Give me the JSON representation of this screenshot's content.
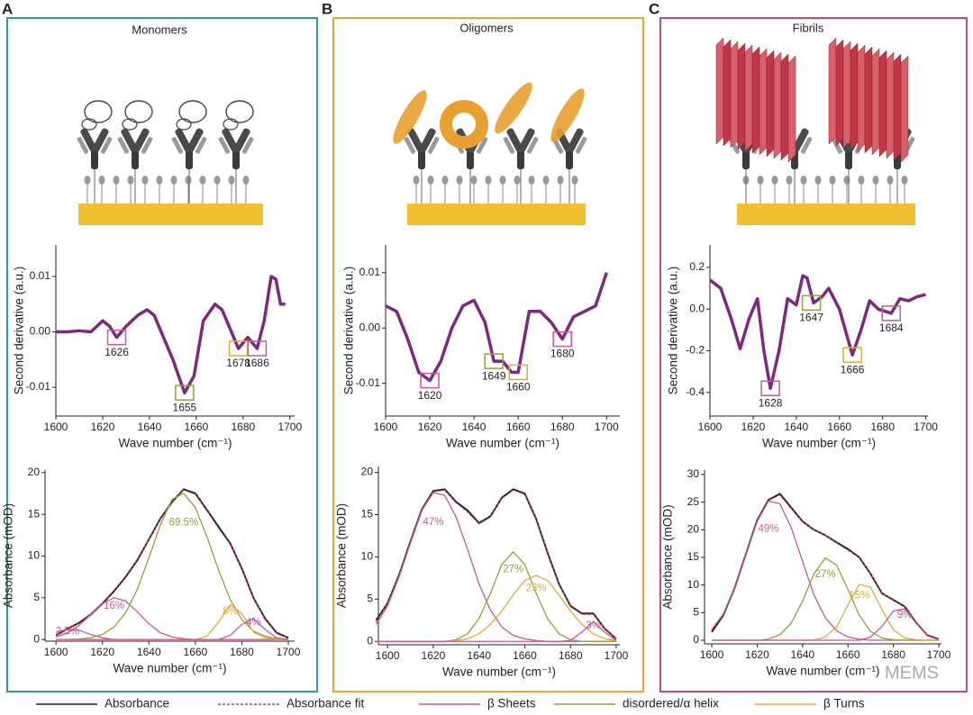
{
  "panels": [
    {
      "letter": "A",
      "title": "Monomers"
    },
    {
      "letter": "B",
      "title": "Oligomers"
    },
    {
      "letter": "C",
      "title": "Fibrils"
    }
  ],
  "legend": [
    {
      "name": "Absorbance",
      "color": "#222222",
      "style": "solid"
    },
    {
      "name": "Absorbance fit",
      "color": "#c0454f",
      "style": "dashed"
    },
    {
      "name": "β Sheets",
      "color": "#c45a96",
      "style": "solid"
    },
    {
      "name": "disordered/α helix",
      "color": "#8fa040",
      "style": "solid"
    },
    {
      "name": "β Turns",
      "color": "#e0a840",
      "style": "solid"
    }
  ],
  "watermark": "MEMS",
  "chart_data": [
    {
      "type": "line",
      "xlabel": "Wave number (cm⁻¹)",
      "ylabel": "Second derivative (a.u.)",
      "xlim": [
        1600,
        1702
      ],
      "ylim": [
        -0.0152,
        0.0157
      ],
      "xticks": [
        1600,
        1620,
        1640,
        1660,
        1680,
        1700
      ],
      "yticks": [
        {
          "value": -0.01,
          "label": "-0.01"
        },
        {
          "value": 0,
          "label": "0.00"
        },
        {
          "value": 0.01,
          "label": "0.01"
        }
      ],
      "x": [
        1600,
        1605,
        1610,
        1615,
        1620,
        1623,
        1626,
        1630,
        1635,
        1639,
        1642,
        1646,
        1650,
        1655,
        1659,
        1663,
        1668,
        1671,
        1675,
        1678,
        1682,
        1686,
        1689,
        1692,
        1694,
        1696,
        1698
      ],
      "series": [
        {
          "name": "Second derivative",
          "color": "#7b2a7e",
          "values": [
            0,
            0,
            0.0002,
            0,
            0.002,
            0.001,
            -0.001,
            0.001,
            0.003,
            0.004,
            0.003,
            -0.001,
            -0.005,
            -0.011,
            -0.008,
            0.002,
            0.005,
            0.004,
            0,
            -0.003,
            -0.001,
            -0.003,
            0.002,
            0.01,
            0.0095,
            0.005,
            0.005
          ]
        }
      ],
      "peaks": [
        1626,
        1655,
        1678,
        1686
      ],
      "peak_y": [
        -0.001,
        -0.011,
        -0.003,
        -0.003
      ],
      "peak_colors": [
        "#c45a96",
        "#8fa040",
        "#e0a840",
        "#c45a96"
      ]
    },
    {
      "type": "line",
      "xlabel": "Wave number (cm⁻¹)",
      "ylabel": "Absorbance (mOD)",
      "xlim": [
        1595.3,
        1702.7
      ],
      "ylim": [
        -0.2,
        20.3
      ],
      "xticks": [
        1600,
        1620,
        1640,
        1660,
        1680,
        1700
      ],
      "yticks": [
        0,
        5,
        10,
        15,
        20
      ],
      "x": [
        1600,
        1605,
        1610,
        1615,
        1620,
        1625,
        1630,
        1635,
        1640,
        1645,
        1650,
        1655,
        1660,
        1665,
        1670,
        1675,
        1680,
        1685,
        1690,
        1695,
        1700
      ],
      "series": [
        {
          "name": "Absorbance",
          "color": "#222222",
          "style": "solid",
          "values": [
            0.5,
            1.3,
            2.0,
            3.0,
            4.3,
            5.8,
            7.5,
            9.5,
            12,
            14.5,
            16.5,
            18,
            17.5,
            15.5,
            13.5,
            11.5,
            8.5,
            5,
            2.5,
            0.8,
            0.2
          ]
        },
        {
          "name": "Absorbance fit",
          "color": "#c0454f",
          "style": "dashed",
          "values": [
            0.6,
            1.3,
            2.1,
            3.1,
            4.4,
            5.9,
            7.6,
            9.6,
            12,
            14.4,
            16.6,
            17.9,
            17.4,
            15.4,
            13.3,
            11.4,
            8.4,
            5.1,
            2.4,
            0.7,
            0.2
          ]
        },
        {
          "name": "β Sheets",
          "color": "#c45a96",
          "style": "solid",
          "share": {
            "value": 2.5,
            "label": "2.5%"
          },
          "values": [
            0.9,
            1.2,
            1.1,
            0.6,
            0.2,
            0,
            0,
            0,
            0,
            0,
            0,
            0,
            0,
            0,
            0,
            0,
            0,
            0,
            0,
            0,
            0
          ]
        },
        {
          "name": "β Sheets",
          "color": "#c45a96",
          "style": "solid",
          "share": {
            "value": 16,
            "label": "16%"
          },
          "values": [
            0.3,
            0.8,
            1.7,
            3.0,
            4.3,
            5.0,
            4.6,
            3.3,
            1.9,
            0.8,
            0.3,
            0.1,
            0,
            0,
            0,
            0,
            0,
            0,
            0,
            0,
            0
          ]
        },
        {
          "name": "disordered/α helix",
          "color": "#8fa040",
          "style": "solid",
          "share": {
            "value": 69.5,
            "label": "69.5%"
          },
          "values": [
            0,
            0,
            0.06,
            0.2,
            0.6,
            1.5,
            3.2,
            6.0,
            9.8,
            13.8,
            16.8,
            17.5,
            15.8,
            12.3,
            8.3,
            4.8,
            2.4,
            1.0,
            0.4,
            0.1,
            0
          ]
        },
        {
          "name": "β Turns",
          "color": "#e0a840",
          "style": "solid",
          "share": {
            "value": 8,
            "label": "8%"
          },
          "values": [
            0,
            0,
            0,
            0,
            0,
            0,
            0,
            0,
            0,
            0,
            0,
            0,
            0,
            0.4,
            2.1,
            4.2,
            3.1,
            0.9,
            0.2,
            0,
            0
          ]
        },
        {
          "name": "β Sheets",
          "color": "#c45a96",
          "style": "solid",
          "share": {
            "value": 4,
            "label": "4%"
          },
          "values": [
            0,
            0,
            0,
            0,
            0,
            0,
            0,
            0,
            0,
            0,
            0,
            0,
            0,
            0,
            0,
            0.5,
            1.8,
            2.5,
            1.2,
            0.2,
            0
          ]
        }
      ]
    },
    {
      "type": "line",
      "xlabel": "Wave number (cm⁻¹)",
      "ylabel": "Second derivative (a.u.)",
      "xlim": [
        1600,
        1706
      ],
      "ylim": [
        -0.0159,
        0.015
      ],
      "xticks": [
        1600,
        1620,
        1640,
        1660,
        1680,
        1700
      ],
      "yticks": [
        {
          "value": -0.01,
          "label": "-0.01"
        },
        {
          "value": 0,
          "label": "0.00"
        },
        {
          "value": 0.01,
          "label": "0.01"
        }
      ],
      "x": [
        1600,
        1605,
        1610,
        1615,
        1620,
        1625,
        1630,
        1635,
        1640,
        1645,
        1649,
        1653,
        1657,
        1660,
        1665,
        1670,
        1675,
        1680,
        1685,
        1690,
        1695,
        1700
      ],
      "series": [
        {
          "name": "Second derivative",
          "color": "#7b2a7e",
          "values": [
            0.004,
            0.003,
            -0.002,
            -0.008,
            -0.0095,
            -0.006,
            0,
            0.004,
            0.005,
            0.001,
            -0.006,
            -0.006,
            -0.008,
            -0.008,
            0.003,
            0.003,
            0.001,
            -0.002,
            0.002,
            0.003,
            0.004,
            0.01
          ]
        }
      ],
      "peaks": [
        1620,
        1649,
        1660,
        1680
      ],
      "peak_y": [
        -0.0095,
        -0.006,
        -0.008,
        -0.002
      ],
      "peak_colors": [
        "#c45a96",
        "#8fa040",
        "#e0a840",
        "#c45a96"
      ]
    },
    {
      "type": "line",
      "xlabel": "Wave number (cm⁻¹)",
      "ylabel": "Absorbance (mOD)",
      "xlim": [
        1596,
        1701.6
      ],
      "ylim": [
        -0.4,
        20.7
      ],
      "xticks": [
        1600,
        1620,
        1640,
        1660,
        1680,
        1700
      ],
      "yticks": [
        0,
        5,
        10,
        15,
        20
      ],
      "x": [
        1595,
        1600,
        1605,
        1610,
        1615,
        1620,
        1625,
        1630,
        1635,
        1640,
        1645,
        1650,
        1655,
        1660,
        1665,
        1670,
        1675,
        1680,
        1685,
        1690,
        1695,
        1700
      ],
      "series": [
        {
          "name": "Absorbance",
          "color": "#222222",
          "style": "solid",
          "values": [
            2.5,
            4.5,
            7.8,
            11.8,
            15.6,
            17.8,
            18,
            16.5,
            15.5,
            14,
            14.8,
            17,
            18,
            17.5,
            14.5,
            10.5,
            6.8,
            4.2,
            3.3,
            3.3,
            1.5,
            0.3
          ]
        },
        {
          "name": "Absorbance fit",
          "color": "#c0454f",
          "style": "dashed",
          "values": [
            2.3,
            4.4,
            7.7,
            11.7,
            15.5,
            17.7,
            17.9,
            16.4,
            15.3,
            13.9,
            14.7,
            16.9,
            17.9,
            17.4,
            14.6,
            10.6,
            6.9,
            4.1,
            3.2,
            3.2,
            1.5,
            0.3
          ]
        },
        {
          "name": "β Sheets",
          "color": "#c45a96",
          "style": "solid",
          "share": {
            "value": 47,
            "label": "47%"
          },
          "values": [
            2.0,
            4.2,
            7.6,
            11.6,
            15.5,
            17.6,
            17.3,
            14.7,
            10.9,
            6.8,
            3.7,
            1.7,
            0.7,
            0.3,
            0.1,
            0,
            0,
            0,
            0,
            0,
            0,
            0
          ]
        },
        {
          "name": "disordered/α helix",
          "color": "#8fa040",
          "style": "solid",
          "share": {
            "value": 27,
            "label": "27%"
          },
          "values": [
            0,
            0,
            0,
            0,
            0,
            0,
            0,
            0.2,
            0.9,
            2.7,
            5.7,
            9.1,
            10.6,
            9.1,
            5.7,
            2.7,
            0.9,
            0.2,
            0,
            0,
            0,
            0
          ]
        },
        {
          "name": "β Turns",
          "color": "#e0a840",
          "style": "solid",
          "share": {
            "value": 23,
            "label": "23%"
          },
          "values": [
            0,
            0,
            0,
            0,
            0,
            0,
            0,
            0.1,
            0.3,
            0.9,
            2.0,
            3.6,
            5.5,
            7.2,
            7.8,
            7.2,
            5.5,
            3.6,
            2.0,
            0.9,
            0.3,
            0.1
          ]
        },
        {
          "name": "β Sheets",
          "color": "#c45a96",
          "style": "solid",
          "share": {
            "value": 3,
            "label": "3%"
          },
          "values": [
            0,
            0,
            0,
            0,
            0,
            0,
            0,
            0,
            0,
            0,
            0,
            0,
            0,
            0,
            0,
            0,
            0,
            0.1,
            1.1,
            2.3,
            1.1,
            0.1
          ]
        }
      ]
    },
    {
      "type": "line",
      "xlabel": "Wave number (cm⁻¹)",
      "ylabel": "Second derivative (a.u.)",
      "xlim": [
        1600,
        1701
      ],
      "ylim": [
        -0.513,
        0.308
      ],
      "xticks": [
        1600,
        1620,
        1640,
        1660,
        1680,
        1700
      ],
      "yticks": [
        {
          "value": -0.4,
          "label": "-0.4"
        },
        {
          "value": -0.2,
          "label": "-0.2"
        },
        {
          "value": 0,
          "label": "0.0"
        },
        {
          "value": 0.2,
          "label": "0.2"
        }
      ],
      "x": [
        1600,
        1605,
        1610,
        1614,
        1618,
        1622,
        1625,
        1628,
        1632,
        1636,
        1640,
        1643,
        1645,
        1648,
        1652,
        1655,
        1660,
        1666,
        1670,
        1674,
        1678,
        1684,
        1688,
        1692,
        1696,
        1700
      ],
      "series": [
        {
          "name": "Second derivative",
          "color": "#7b2a7e",
          "values": [
            0.14,
            0.1,
            -0.05,
            -0.19,
            -0.05,
            0.05,
            -0.2,
            -0.38,
            -0.2,
            0.05,
            0.02,
            0.16,
            0.15,
            0.03,
            0.06,
            0.1,
            0,
            -0.22,
            -0.1,
            0.04,
            0,
            -0.02,
            0.05,
            0.04,
            0.06,
            0.07
          ]
        }
      ],
      "peaks": [
        1628,
        1647,
        1666,
        1684
      ],
      "peak_y": [
        -0.38,
        0.03,
        -0.22,
        -0.02
      ],
      "peak_colors": [
        "#c45a96",
        "#8fa040",
        "#e0a840",
        "#c45a96"
      ]
    },
    {
      "type": "line",
      "xlabel": "Wave number (cm⁻¹)",
      "ylabel": "Absorbance (mOD)",
      "xlim": [
        1596.8,
        1701.2
      ],
      "ylim": [
        -0.65,
        30.8
      ],
      "xticks": [
        1600,
        1620,
        1640,
        1660,
        1680,
        1700
      ],
      "yticks": [
        0,
        5,
        10,
        15,
        20,
        25,
        30
      ],
      "x": [
        1600,
        1605,
        1610,
        1615,
        1620,
        1625,
        1630,
        1635,
        1640,
        1645,
        1650,
        1655,
        1660,
        1665,
        1670,
        1675,
        1680,
        1685,
        1690,
        1695,
        1700
      ],
      "series": [
        {
          "name": "Absorbance",
          "color": "#222222",
          "style": "solid",
          "values": [
            1.5,
            4.5,
            9.4,
            15.6,
            21.7,
            25.4,
            26.5,
            24,
            21.5,
            20,
            19,
            17.7,
            16.5,
            15,
            12,
            8.5,
            7.3,
            6.1,
            3.2,
            0.9,
            0.2
          ]
        },
        {
          "name": "Absorbance fit",
          "color": "#c0454f",
          "style": "dashed",
          "values": [
            1.8,
            4.7,
            9.4,
            15.6,
            21.6,
            25.3,
            26.3,
            23.8,
            21.4,
            20,
            19,
            17.6,
            16.3,
            15,
            12.1,
            8.6,
            7.2,
            6,
            3.2,
            0.9,
            0.1
          ]
        },
        {
          "name": "β Sheets",
          "color": "#c45a96",
          "style": "solid",
          "share": {
            "value": 49,
            "label": "49%"
          },
          "values": [
            2.0,
            4.7,
            9.4,
            15.6,
            21.5,
            25.2,
            24.7,
            20.4,
            14.3,
            8.2,
            4.1,
            1.7,
            0.6,
            0.2,
            0,
            0,
            0,
            0,
            0,
            0,
            0
          ]
        },
        {
          "name": "disordered/α helix",
          "color": "#8fa040",
          "style": "solid",
          "share": {
            "value": 27,
            "label": "27%"
          },
          "values": [
            0,
            0,
            0,
            0,
            0,
            0.2,
            1.0,
            3.1,
            7.1,
            12.0,
            14.9,
            13.6,
            9.2,
            4.5,
            1.6,
            0.4,
            0.1,
            0,
            0,
            0,
            0
          ]
        },
        {
          "name": "β Turns",
          "color": "#e0a840",
          "style": "solid",
          "share": {
            "value": 15,
            "label": "15%"
          },
          "values": [
            0,
            0,
            0,
            0,
            0,
            0,
            0,
            0,
            0,
            0,
            0.6,
            2.4,
            6.4,
            10.1,
            9.6,
            5.5,
            1.9,
            0.4,
            0.1,
            0,
            0
          ]
        },
        {
          "name": "β Sheets",
          "color": "#c45a96",
          "style": "solid",
          "share": {
            "value": 9,
            "label": "9%"
          },
          "values": [
            0,
            0,
            0,
            0,
            0,
            0,
            0,
            0,
            0,
            0,
            0,
            0,
            0,
            0,
            0.6,
            2.5,
            5.3,
            5.7,
            3.1,
            0.8,
            0.1
          ]
        }
      ]
    }
  ]
}
